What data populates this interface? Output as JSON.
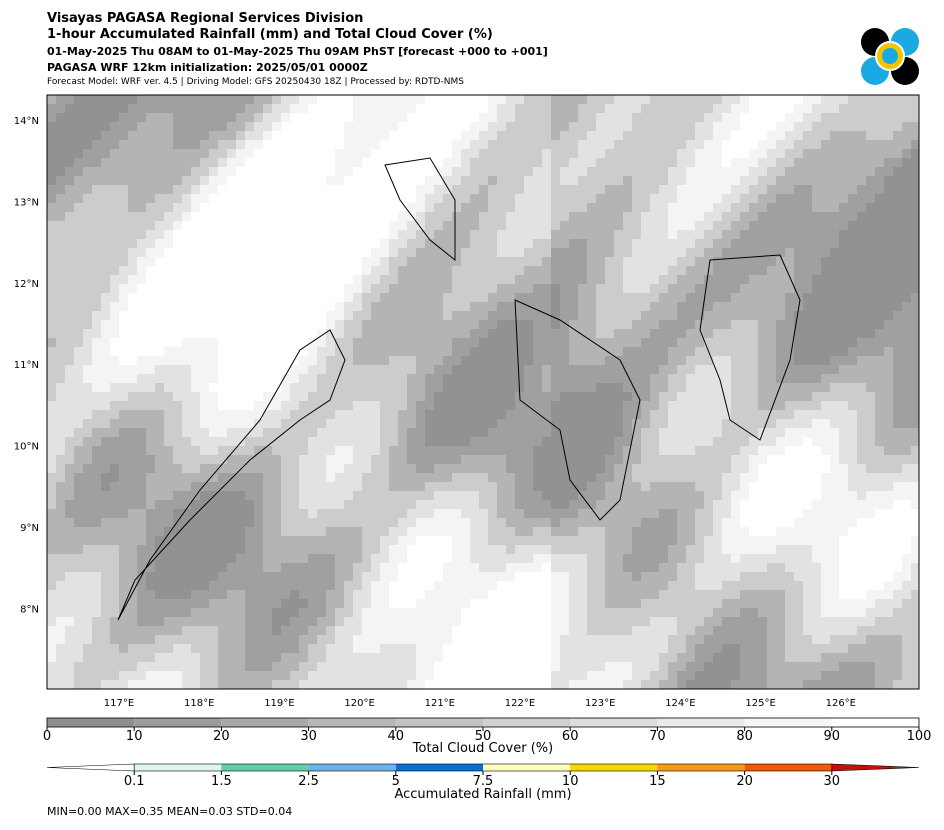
{
  "header": {
    "title": "Visayas PAGASA Regional Services Division",
    "subtitle": "1-hour Accumulated Rainfall (mm) and Total Cloud Cover (%)",
    "period": "01-May-2025 Thu 08AM to 01-May-2025 Thu 09AM PhST [forecast +000 to +001]",
    "init": "PAGASA WRF 12km initialization: 2025/05/01 0000Z",
    "model": "Forecast Model: WRF ver. 4.5 | Driving Model: GFS 20250430 18Z | Processed by: RDTD-NMS"
  },
  "map": {
    "lon_labels": [
      "117°E",
      "118°E",
      "119°E",
      "120°E",
      "121°E",
      "122°E",
      "123°E",
      "124°E",
      "125°E",
      "126°E"
    ],
    "lat_labels": [
      "14°N",
      "13°N",
      "12°N",
      "11°N",
      "10°N",
      "9°N",
      "8°N"
    ]
  },
  "cloud_colorbar": {
    "label": "Total Cloud Cover (%)",
    "ticks": [
      0,
      10,
      20,
      30,
      40,
      50,
      60,
      70,
      80,
      90,
      100
    ],
    "colors": [
      "#8f8f8f",
      "#9c9c9c",
      "#a9a9a9",
      "#b6b6b6",
      "#c3c3c3",
      "#d0d0d0",
      "#dddddd",
      "#eaeaea",
      "#f6f6f6",
      "#ffffff"
    ]
  },
  "rain_colorbar": {
    "label": "Accumulated Rainfall (mm)",
    "ticks": [
      0.1,
      1.5,
      2.5,
      5,
      7.5,
      10,
      15,
      20,
      30
    ],
    "under_color": "#ffffff",
    "colors": [
      "#dff5ef",
      "#66cdaa",
      "#6cb3ec",
      "#0a6fcf",
      "#ffffbb",
      "#f5d800",
      "#f59a1e",
      "#ec5a0a"
    ],
    "over_color": "#c41010"
  },
  "stats": "MIN=0.00   MAX=0.35   MEAN=0.03   STD=0.04"
}
